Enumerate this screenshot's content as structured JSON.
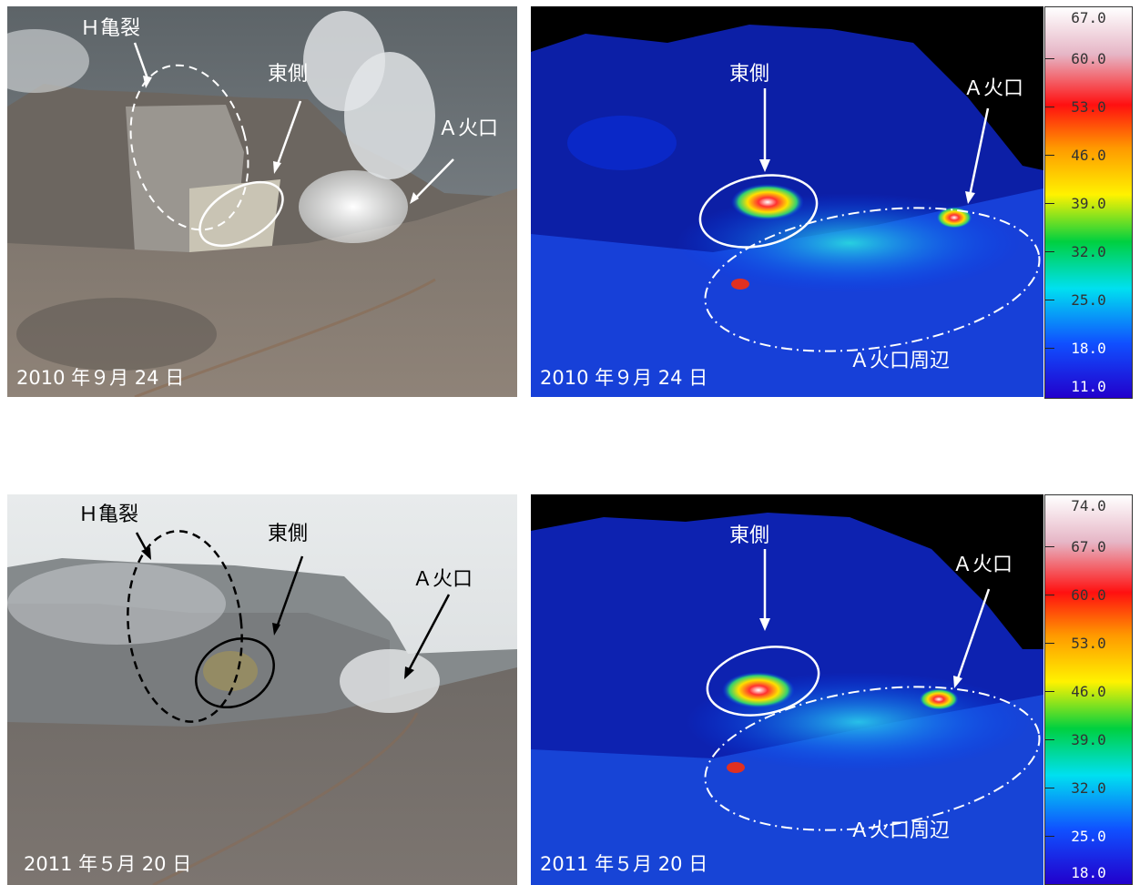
{
  "panels": {
    "photo_2010": {
      "labels": {
        "h_crack": "Ｈ亀裂",
        "east": "東側",
        "crater_a": "Ａ火口"
      },
      "date": "2010 年９月 24 日"
    },
    "thermal_2010": {
      "labels": {
        "east": "東側",
        "crater_a": "Ａ火口",
        "crater_a_area": "Ａ火口周辺"
      },
      "date": "2010 年９月 24 日",
      "scale_ticks": [
        "67.0",
        "60.0",
        "53.0",
        "46.0",
        "39.0",
        "32.0",
        "25.0",
        "18.0",
        "11.0"
      ]
    },
    "photo_2011": {
      "labels": {
        "h_crack": "Ｈ亀裂",
        "east": "東側",
        "crater_a": "Ａ火口"
      },
      "date": "2011 年５月 20 日"
    },
    "thermal_2011": {
      "labels": {
        "east": "東側",
        "crater_a": "Ａ火口",
        "crater_a_area": "Ａ火口周辺"
      },
      "date": "2011 年５月 20 日",
      "scale_ticks": [
        "74.0",
        "67.0",
        "60.0",
        "53.0",
        "46.0",
        "39.0",
        "32.0",
        "25.0",
        "18.0"
      ]
    }
  }
}
